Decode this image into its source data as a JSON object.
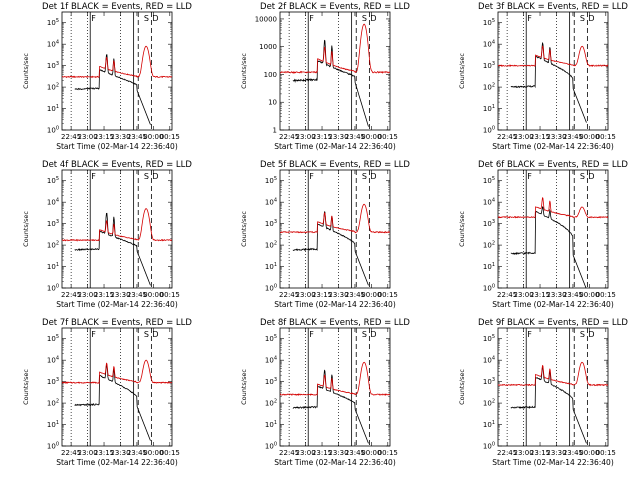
{
  "figure": {
    "start_time_label": "Start Time (02-Mar-14 22:36:40)",
    "y_axis_label": "Counts/sec",
    "x_tick_labels": [
      "22:45",
      "23:00",
      "23:15",
      "23:30",
      "23:45",
      "00:00",
      "00:15"
    ],
    "markers": [
      "F",
      "S",
      "D"
    ],
    "colors": {
      "events": "#000000",
      "lld": "#d40000"
    }
  },
  "chart_data": [
    {
      "type": "line",
      "title": "Det 1f BLACK = Events, RED = LLD",
      "yscale": "log",
      "ytick_labels": [
        "10^0",
        "10^1",
        "10^2",
        "10^3",
        "10^4",
        "10^5"
      ],
      "ylim": [
        1,
        316227
      ],
      "xlim": [
        "22:36:40",
        "00:17"
      ],
      "red_base": 300,
      "red_peak": 8000,
      "black_base": 80,
      "black_peak": 3000,
      "black_red_ratio": 0.5,
      "series": [
        {
          "name": "BLACK = Events",
          "color": "#000000"
        },
        {
          "name": "RED = LLD",
          "color": "#d40000"
        }
      ]
    },
    {
      "type": "line",
      "title": "Det 2f BLACK = Events, RED = LLD",
      "yscale": "log",
      "ytick_labels": [
        "1",
        "10",
        "100",
        "1000",
        "10000"
      ],
      "ylim": [
        1,
        17783
      ],
      "xlim": [
        "22:36:40",
        "00:17"
      ],
      "red_base": 120,
      "red_peak": 6500,
      "black_base": 60,
      "black_peak": 1500,
      "black_red_ratio": 0.55,
      "series": [
        {
          "name": "BLACK = Events",
          "color": "#000000"
        },
        {
          "name": "RED = LLD",
          "color": "#d40000"
        }
      ]
    },
    {
      "type": "line",
      "title": "Det 3f BLACK = Events, RED = LLD",
      "yscale": "log",
      "ytick_labels": [
        "10^0",
        "10^1",
        "10^2",
        "10^3",
        "10^4",
        "10^5"
      ],
      "ylim": [
        1,
        316227
      ],
      "xlim": [
        "22:36:40",
        "00:17"
      ],
      "red_base": 1000,
      "red_peak": 8000,
      "black_base": 100,
      "black_peak": 10000,
      "black_red_ratio": 0.7,
      "series": [
        {
          "name": "BLACK = Events",
          "color": "#000000"
        },
        {
          "name": "RED = LLD",
          "color": "#d40000"
        }
      ]
    },
    {
      "type": "line",
      "title": "Det 4f BLACK = Events, RED = LLD",
      "yscale": "log",
      "ytick_labels": [
        "10^0",
        "10^1",
        "10^2",
        "10^3",
        "10^4",
        "10^5"
      ],
      "ylim": [
        1,
        316227
      ],
      "xlim": [
        "22:36:40",
        "00:17"
      ],
      "red_base": 170,
      "red_peak": 5000,
      "black_base": 60,
      "black_peak": 3000,
      "black_red_ratio": 0.6,
      "series": [
        {
          "name": "BLACK = Events",
          "color": "#000000"
        },
        {
          "name": "RED = LLD",
          "color": "#d40000"
        }
      ]
    },
    {
      "type": "line",
      "title": "Det 5f BLACK = Events, RED = LLD",
      "yscale": "log",
      "ytick_labels": [
        "10^0",
        "10^1",
        "10^2",
        "10^3",
        "10^4",
        "10^5"
      ],
      "ylim": [
        1,
        316227
      ],
      "xlim": [
        "22:36:40",
        "00:17"
      ],
      "red_base": 400,
      "red_peak": 8000,
      "black_base": 60,
      "black_peak": 3000,
      "black_red_ratio": 0.6,
      "series": [
        {
          "name": "BLACK = Events",
          "color": "#000000"
        },
        {
          "name": "RED = LLD",
          "color": "#d40000"
        }
      ]
    },
    {
      "type": "line",
      "title": "Det 6f BLACK = Events, RED = LLD",
      "yscale": "log",
      "ytick_labels": [
        "10^0",
        "10^1",
        "10^2",
        "10^3",
        "10^4",
        "10^5"
      ],
      "ylim": [
        1,
        316227
      ],
      "xlim": [
        "22:36:40",
        "00:17"
      ],
      "red_base": 2000,
      "red_peak": 6000,
      "black_base": 40,
      "black_peak": 4000,
      "black_red_ratio": 0.5,
      "series": [
        {
          "name": "BLACK = Events",
          "color": "#000000"
        },
        {
          "name": "RED = LLD",
          "color": "#d40000"
        }
      ]
    },
    {
      "type": "line",
      "title": "Det 7f BLACK = Events, RED = LLD",
      "yscale": "log",
      "ytick_labels": [
        "10^0",
        "10^1",
        "10^2",
        "10^3",
        "10^4",
        "10^5"
      ],
      "ylim": [
        1,
        316227
      ],
      "xlim": [
        "22:36:40",
        "00:17"
      ],
      "red_base": 900,
      "red_peak": 10000,
      "black_base": 80,
      "black_peak": 5000,
      "black_red_ratio": 0.55,
      "series": [
        {
          "name": "BLACK = Events",
          "color": "#000000"
        },
        {
          "name": "RED = LLD",
          "color": "#d40000"
        }
      ]
    },
    {
      "type": "line",
      "title": "Det 8f BLACK = Events, RED = LLD",
      "yscale": "log",
      "ytick_labels": [
        "10^0",
        "10^1",
        "10^2",
        "10^3",
        "10^4",
        "10^5"
      ],
      "ylim": [
        1,
        316227
      ],
      "xlim": [
        "22:36:40",
        "00:17"
      ],
      "red_base": 250,
      "red_peak": 8000,
      "black_base": 60,
      "black_peak": 3000,
      "black_red_ratio": 0.6,
      "series": [
        {
          "name": "BLACK = Events",
          "color": "#000000"
        },
        {
          "name": "RED = LLD",
          "color": "#d40000"
        }
      ]
    },
    {
      "type": "line",
      "title": "Det 9f BLACK = Events, RED = LLD",
      "yscale": "log",
      "ytick_labels": [
        "10^0",
        "10^1",
        "10^2",
        "10^3",
        "10^4",
        "10^5"
      ],
      "ylim": [
        1,
        316227
      ],
      "xlim": [
        "22:36:40",
        "00:17"
      ],
      "red_base": 700,
      "red_peak": 8000,
      "black_base": 60,
      "black_peak": 4000,
      "black_red_ratio": 0.6,
      "series": [
        {
          "name": "BLACK = Events",
          "color": "#000000"
        },
        {
          "name": "RED = LLD",
          "color": "#d40000"
        }
      ]
    }
  ]
}
